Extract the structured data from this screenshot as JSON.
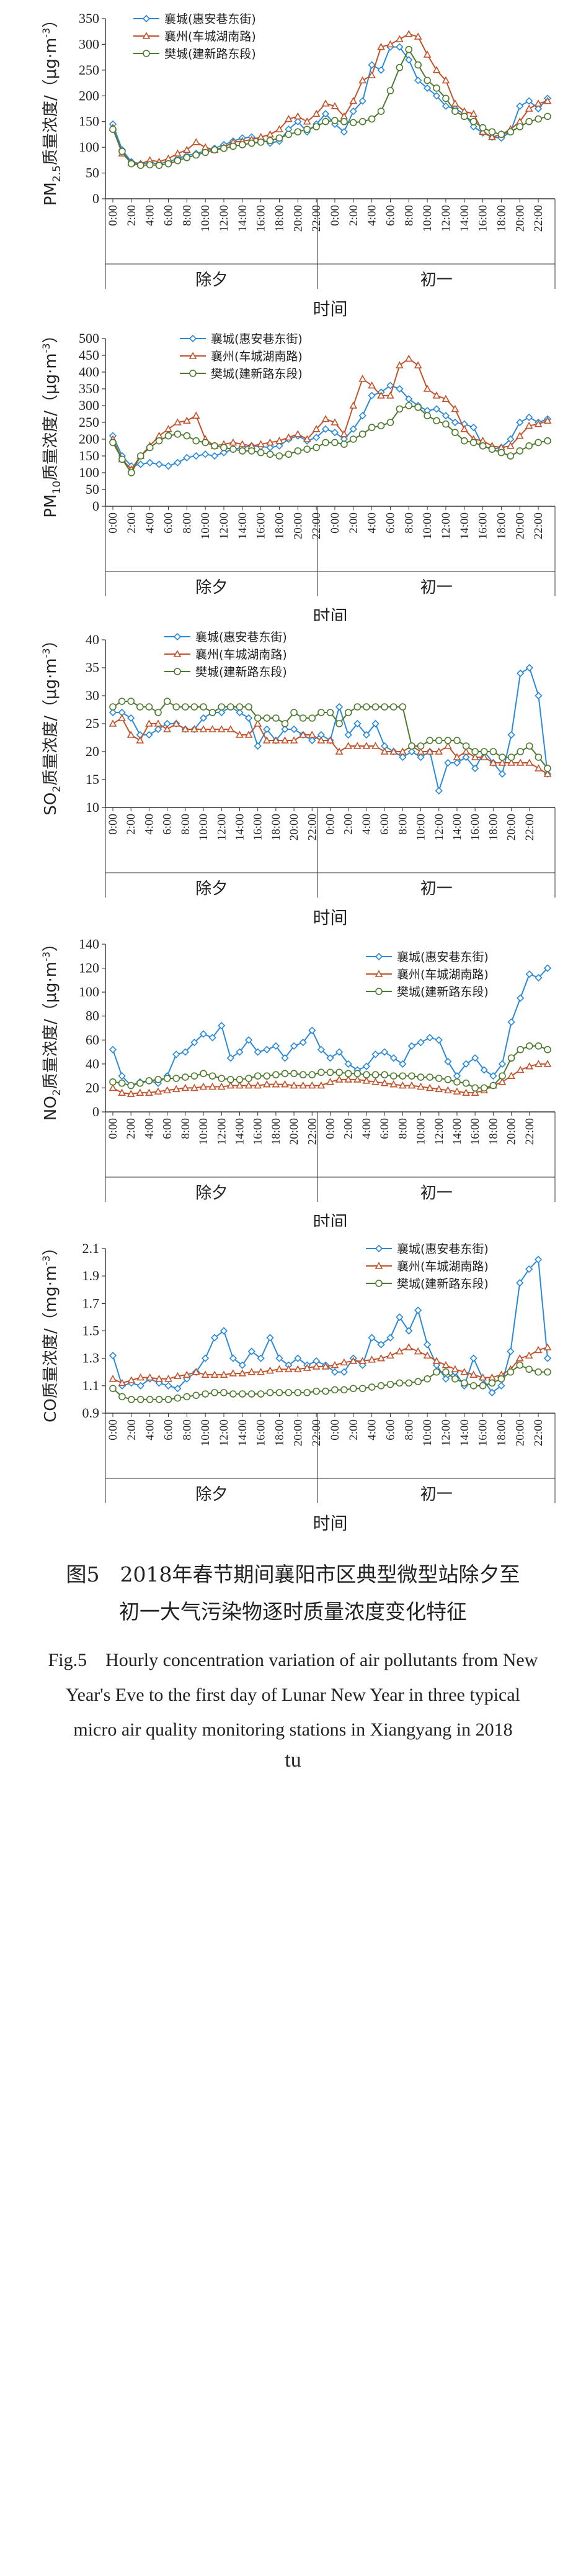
{
  "colors": {
    "s1": "#2b8ad8",
    "s2": "#c0532b",
    "s3": "#4d7a2e"
  },
  "chart_data": [
    {
      "type": "line",
      "ylabel": "PM2.5质量浓度/（μg·m⁻³）",
      "ylabel_parts": {
        "pre": "PM",
        "sub": "2.5",
        "post": "质量浓度/（μg·m",
        "sup": "-3",
        "end": "）"
      },
      "xlabel": "时间",
      "ylim": [
        0,
        350
      ],
      "yticks": [
        0,
        50,
        100,
        150,
        200,
        250,
        300,
        350
      ],
      "x_tick_labels": [
        "0:00",
        "2:00",
        "4:00",
        "6:00",
        "8:00",
        "10:00",
        "12:00",
        "14:00",
        "16:00",
        "18:00",
        "20:00",
        "22:00",
        "0:00",
        "2:00",
        "4:00",
        "6:00",
        "8:00",
        "10:00",
        "12:00",
        "14:00",
        "16:00",
        "18:00",
        "20:00",
        "22:00"
      ],
      "groups": [
        "除夕",
        "初一"
      ],
      "legend_position": "top-left",
      "series": [
        {
          "name": "襄城(惠安巷东街)",
          "values": [
            145,
            95,
            72,
            68,
            70,
            68,
            72,
            78,
            84,
            88,
            93,
            98,
            105,
            112,
            118,
            120,
            115,
            108,
            112,
            135,
            150,
            130,
            145,
            165,
            145,
            130,
            170,
            190,
            260,
            250,
            295,
            295,
            270,
            230,
            215,
            200,
            180,
            175,
            165,
            140,
            128,
            120,
            118,
            130,
            180,
            190,
            175,
            195
          ]
        },
        {
          "name": "襄州(车城湖南路)",
          "values": [
            138,
            88,
            70,
            68,
            75,
            72,
            78,
            88,
            95,
            110,
            100,
            95,
            100,
            110,
            112,
            115,
            120,
            125,
            135,
            155,
            160,
            150,
            165,
            185,
            180,
            160,
            190,
            230,
            240,
            295,
            300,
            310,
            320,
            315,
            280,
            250,
            230,
            185,
            170,
            165,
            130,
            120,
            125,
            135,
            150,
            175,
            185,
            190
          ]
        },
        {
          "name": "樊城(建新路东段)",
          "values": [
            135,
            92,
            68,
            65,
            66,
            65,
            68,
            74,
            80,
            85,
            90,
            95,
            98,
            102,
            105,
            108,
            110,
            113,
            118,
            125,
            130,
            135,
            140,
            150,
            152,
            150,
            148,
            150,
            155,
            170,
            210,
            255,
            290,
            260,
            230,
            215,
            195,
            170,
            160,
            150,
            138,
            130,
            125,
            130,
            140,
            150,
            155,
            160
          ]
        }
      ]
    },
    {
      "type": "line",
      "ylabel": "PM10质量浓度/（μg·m⁻³）",
      "ylabel_parts": {
        "pre": "PM",
        "sub": "10",
        "post": "质量浓度/（μg·m",
        "sup": "-3",
        "end": "）"
      },
      "xlabel": "时间",
      "ylim": [
        0,
        500
      ],
      "yticks": [
        0,
        50,
        100,
        150,
        200,
        250,
        300,
        350,
        400,
        450,
        500
      ],
      "x_tick_labels": [
        "0:00",
        "2:00",
        "4:00",
        "6:00",
        "8:00",
        "10:00",
        "12:00",
        "14:00",
        "16:00",
        "18:00",
        "20:00",
        "22:00",
        "0:00",
        "2:00",
        "4:00",
        "6:00",
        "8:00",
        "10:00",
        "12:00",
        "14:00",
        "16:00",
        "18:00",
        "20:00",
        "22:00"
      ],
      "groups": [
        "除夕",
        "初一"
      ],
      "legend_position": "top-center",
      "series": [
        {
          "name": "襄城(惠安巷东街)",
          "values": [
            210,
            150,
            120,
            125,
            130,
            125,
            120,
            130,
            145,
            150,
            155,
            150,
            160,
            170,
            175,
            180,
            178,
            175,
            180,
            200,
            210,
            195,
            205,
            230,
            220,
            200,
            230,
            270,
            330,
            340,
            360,
            350,
            320,
            300,
            285,
            290,
            270,
            250,
            245,
            235,
            180,
            170,
            175,
            200,
            250,
            265,
            250,
            260
          ]
        },
        {
          "name": "襄州(车城湖南路)",
          "values": [
            200,
            140,
            110,
            150,
            180,
            210,
            230,
            250,
            255,
            270,
            200,
            180,
            185,
            190,
            185,
            180,
            185,
            190,
            195,
            205,
            215,
            200,
            230,
            260,
            250,
            215,
            300,
            380,
            360,
            330,
            330,
            420,
            440,
            420,
            350,
            330,
            320,
            290,
            230,
            200,
            195,
            180,
            175,
            180,
            210,
            240,
            245,
            255
          ]
        },
        {
          "name": "樊城(建新路东段)",
          "values": [
            190,
            140,
            100,
            150,
            175,
            195,
            210,
            215,
            210,
            195,
            190,
            180,
            175,
            170,
            165,
            165,
            160,
            155,
            150,
            155,
            165,
            170,
            175,
            190,
            190,
            185,
            200,
            215,
            235,
            240,
            250,
            290,
            300,
            295,
            270,
            255,
            245,
            220,
            195,
            190,
            180,
            170,
            160,
            150,
            165,
            180,
            190,
            195
          ]
        }
      ]
    },
    {
      "type": "line",
      "ylabel": "SO2质量浓度/（μg·m⁻³）",
      "ylabel_parts": {
        "pre": "SO",
        "sub": "2",
        "post": "质量浓度/（μg·m",
        "sup": "-3",
        "end": "）"
      },
      "xlabel": "时间",
      "ylim": [
        10,
        40
      ],
      "yticks": [
        10,
        15,
        20,
        25,
        30,
        35,
        40
      ],
      "x_tick_labels": [
        "0:00",
        "2:00",
        "4:00",
        "6:00",
        "8:00",
        "10:00",
        "12:00",
        "14:00",
        "16:00",
        "18:00",
        "20:00",
        "22:00",
        "0:00",
        "2:00",
        "4:00",
        "6:00",
        "8:00",
        "10:00",
        "12:00",
        "14:00",
        "16:00",
        "18:00",
        "20:00",
        "22:00"
      ],
      "groups": [
        "除夕",
        "初一"
      ],
      "legend_position": "top-center",
      "series": [
        {
          "name": "襄城(惠安巷东街)",
          "values": [
            27,
            27,
            26,
            23,
            23,
            24,
            25,
            25,
            24,
            24,
            26,
            27,
            27,
            28,
            27,
            26,
            21,
            24,
            22,
            24,
            24,
            23,
            22,
            23,
            22,
            28,
            23,
            25,
            23,
            25,
            21,
            20,
            19,
            20,
            19,
            20,
            13,
            18,
            18,
            19,
            17,
            20,
            18,
            16,
            23,
            34,
            35,
            30,
            16
          ]
        },
        {
          "name": "襄州(车城湖南路)",
          "values": [
            25,
            26,
            23,
            22,
            25,
            25,
            24,
            25,
            24,
            24,
            24,
            24,
            24,
            24,
            23,
            23,
            25,
            22,
            22,
            22,
            22,
            23,
            23,
            22,
            22,
            20,
            21,
            21,
            21,
            21,
            20,
            20,
            20,
            21,
            20,
            20,
            20,
            21,
            19,
            20,
            19,
            19,
            18,
            18,
            18,
            18,
            18,
            17,
            16
          ]
        },
        {
          "name": "樊城(建新路东段)",
          "values": [
            28,
            29,
            29,
            28,
            28,
            27,
            29,
            28,
            28,
            28,
            28,
            27,
            28,
            28,
            28,
            28,
            26,
            26,
            26,
            25,
            27,
            26,
            26,
            27,
            27,
            25,
            27,
            28,
            28,
            28,
            28,
            28,
            28,
            21,
            21,
            22,
            22,
            22,
            22,
            21,
            20,
            20,
            20,
            19,
            19,
            20,
            21,
            19,
            17
          ]
        }
      ]
    },
    {
      "type": "line",
      "ylabel": "NO2质量浓度/（μg·m⁻³）",
      "ylabel_parts": {
        "pre": "NO",
        "sub": "2",
        "post": "质量浓度/（μg·m",
        "sup": "-3",
        "end": "）"
      },
      "xlabel": "时间",
      "ylim": [
        0,
        140
      ],
      "yticks": [
        0,
        20,
        40,
        60,
        80,
        100,
        120,
        140
      ],
      "x_tick_labels": [
        "0:00",
        "2:00",
        "4:00",
        "6:00",
        "8:00",
        "10:00",
        "12:00",
        "14:00",
        "16:00",
        "18:00",
        "20:00",
        "22:00",
        "0:00",
        "2:00",
        "4:00",
        "6:00",
        "8:00",
        "10:00",
        "12:00",
        "14:00",
        "16:00",
        "18:00",
        "20:00",
        "22:00"
      ],
      "groups": [
        "除夕",
        "初一"
      ],
      "legend_position": "top-right",
      "series": [
        {
          "name": "襄城(惠安巷东街)",
          "values": [
            52,
            30,
            22,
            25,
            26,
            24,
            30,
            48,
            50,
            58,
            65,
            62,
            72,
            45,
            50,
            60,
            50,
            52,
            55,
            45,
            55,
            58,
            68,
            52,
            45,
            50,
            40,
            35,
            38,
            48,
            50,
            45,
            40,
            55,
            58,
            62,
            60,
            42,
            30,
            40,
            45,
            35,
            30,
            40,
            75,
            95,
            115,
            112,
            120
          ]
        },
        {
          "name": "襄州(车城湖南路)",
          "values": [
            20,
            16,
            15,
            16,
            16,
            17,
            18,
            19,
            20,
            20,
            21,
            21,
            21,
            22,
            22,
            22,
            22,
            23,
            23,
            23,
            22,
            22,
            22,
            22,
            25,
            27,
            27,
            27,
            26,
            25,
            24,
            23,
            22,
            22,
            21,
            20,
            19,
            18,
            17,
            16,
            16,
            18,
            22,
            25,
            30,
            35,
            38,
            40,
            40
          ]
        },
        {
          "name": "樊城(建新路东段)",
          "values": [
            25,
            24,
            22,
            24,
            26,
            27,
            28,
            28,
            29,
            30,
            32,
            30,
            28,
            27,
            27,
            28,
            30,
            30,
            31,
            32,
            32,
            31,
            31,
            33,
            33,
            33,
            32,
            32,
            31,
            31,
            31,
            30,
            30,
            30,
            29,
            29,
            28,
            27,
            25,
            24,
            20,
            20,
            22,
            30,
            45,
            52,
            55,
            55,
            52
          ]
        }
      ]
    },
    {
      "type": "line",
      "ylabel": "CO质量浓度/（mg·m⁻³）",
      "ylabel_parts": {
        "pre": "CO",
        "sub": "",
        "post": "质量浓度/（mg·m",
        "sup": "-3",
        "end": "）"
      },
      "xlabel": "时间",
      "ylim": [
        0.9,
        2.1
      ],
      "yticks": [
        0.9,
        1.1,
        1.3,
        1.5,
        1.7,
        1.9,
        2.1
      ],
      "x_tick_labels": [
        "0:00",
        "2:00",
        "4:00",
        "6:00",
        "8:00",
        "10:00",
        "12:00",
        "14:00",
        "16:00",
        "18:00",
        "20:00",
        "22:00",
        "0:00",
        "2:00",
        "4:00",
        "6:00",
        "8:00",
        "10:00",
        "12:00",
        "14:00",
        "16:00",
        "18:00",
        "20:00",
        "22:00"
      ],
      "groups": [
        "除夕",
        "初一"
      ],
      "legend_position": "top-right",
      "series": [
        {
          "name": "襄城(惠安巷东街)",
          "values": [
            1.32,
            1.1,
            1.12,
            1.1,
            1.15,
            1.12,
            1.1,
            1.08,
            1.15,
            1.2,
            1.3,
            1.45,
            1.5,
            1.3,
            1.25,
            1.35,
            1.3,
            1.45,
            1.3,
            1.25,
            1.3,
            1.25,
            1.28,
            1.25,
            1.2,
            1.2,
            1.3,
            1.25,
            1.45,
            1.4,
            1.45,
            1.6,
            1.5,
            1.65,
            1.4,
            1.25,
            1.15,
            1.2,
            1.1,
            1.3,
            1.15,
            1.05,
            1.1,
            1.35,
            1.85,
            1.95,
            2.02,
            1.3
          ]
        },
        {
          "name": "襄州(车城湖南路)",
          "values": [
            1.15,
            1.12,
            1.14,
            1.16,
            1.16,
            1.15,
            1.15,
            1.17,
            1.18,
            1.2,
            1.18,
            1.18,
            1.18,
            1.19,
            1.19,
            1.2,
            1.2,
            1.21,
            1.22,
            1.22,
            1.22,
            1.23,
            1.24,
            1.24,
            1.25,
            1.27,
            1.28,
            1.28,
            1.29,
            1.3,
            1.32,
            1.35,
            1.38,
            1.35,
            1.32,
            1.28,
            1.25,
            1.22,
            1.2,
            1.18,
            1.16,
            1.16,
            1.18,
            1.22,
            1.3,
            1.32,
            1.36,
            1.38
          ]
        },
        {
          "name": "樊城(建新路东段)",
          "values": [
            1.08,
            1.02,
            1.0,
            1.0,
            1.0,
            1.0,
            1.0,
            1.01,
            1.02,
            1.03,
            1.04,
            1.05,
            1.05,
            1.04,
            1.04,
            1.04,
            1.04,
            1.05,
            1.05,
            1.05,
            1.05,
            1.05,
            1.06,
            1.06,
            1.07,
            1.07,
            1.08,
            1.08,
            1.09,
            1.1,
            1.11,
            1.12,
            1.12,
            1.13,
            1.15,
            1.2,
            1.2,
            1.15,
            1.12,
            1.1,
            1.1,
            1.12,
            1.15,
            1.2,
            1.25,
            1.22,
            1.2,
            1.2
          ]
        }
      ]
    }
  ],
  "caption": {
    "zh_line1": "图5　2018年春节期间襄阳市区典型微型站除夕至",
    "zh_line2": "初一大气污染物逐时质量浓度变化特征",
    "en_line1": "Fig.5　Hourly concentration variation of air pollutants from New",
    "en_line2": "Year's Eve to the first day of Lunar New Year in three typical",
    "en_line3": "micro air quality monitoring stations in Xiangyang in 2018",
    "tail": "tu"
  }
}
